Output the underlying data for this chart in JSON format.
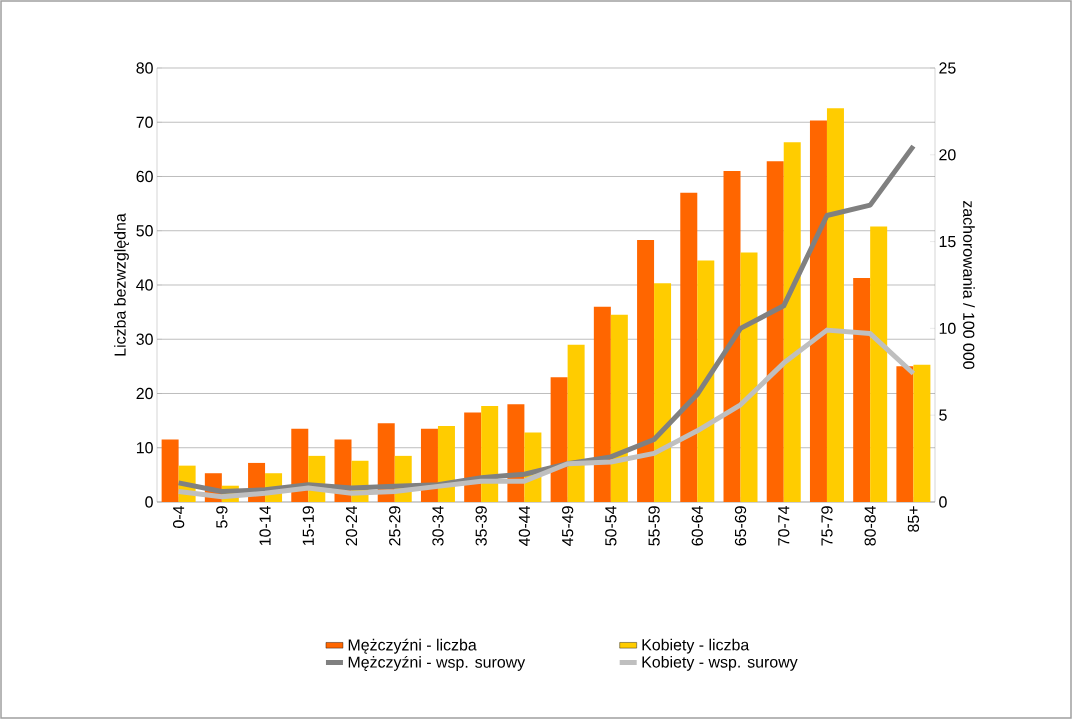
{
  "chart_data": {
    "type": "bar",
    "categories": [
      "0-4",
      "5-9",
      "10-14",
      "15-19",
      "20-24",
      "25-29",
      "30-34",
      "35-39",
      "40-44",
      "45-49",
      "50-54",
      "55-59",
      "60-64",
      "65-69",
      "70-74",
      "75-79",
      "80-84",
      "85+"
    ],
    "series": [
      {
        "name": "Mężczyźni - liczba",
        "color": "#ff6600",
        "values": [
          11.5,
          5.3,
          7.2,
          13.5,
          11.5,
          14.5,
          13.5,
          16.5,
          18,
          23,
          36,
          48.3,
          57,
          61,
          62.8,
          70.3,
          41.3,
          25
        ]
      },
      {
        "name": "Kobiety - liczba",
        "color": "#ffcc00",
        "values": [
          6.7,
          3,
          5.3,
          8.5,
          7.6,
          8.5,
          14,
          17.7,
          12.8,
          29,
          34.5,
          40.3,
          44.5,
          46,
          66.3,
          72.6,
          50.8,
          25.3
        ]
      },
      {
        "name": "Mężczyźni - wsp. surowy",
        "type": "line",
        "axis": "y2",
        "color": "#808080",
        "values": [
          1.1,
          0.6,
          0.7,
          1.0,
          0.8,
          0.9,
          1.0,
          1.4,
          1.6,
          2.2,
          2.6,
          3.6,
          6.2,
          10.0,
          11.3,
          16.5,
          17.1,
          20.5
        ]
      },
      {
        "name": "Kobiety - wsp. surowy",
        "type": "line",
        "axis": "y2",
        "color": "#bfbfbf",
        "values": [
          0.6,
          0.3,
          0.5,
          0.8,
          0.5,
          0.6,
          0.9,
          1.2,
          1.2,
          2.2,
          2.3,
          2.8,
          4.1,
          5.6,
          8.0,
          9.9,
          9.7,
          7.4
        ]
      }
    ],
    "ylabel": "Liczba bezwzględna",
    "y2label": "zachorowania / 100 000",
    "ylim": [
      0,
      80
    ],
    "yticks": [
      0,
      10,
      20,
      30,
      40,
      50,
      60,
      70,
      80
    ],
    "y2lim": [
      0,
      25
    ],
    "y2ticks": [
      0,
      5,
      10,
      15,
      20,
      25
    ],
    "grid": "y",
    "legend": "bottom"
  }
}
